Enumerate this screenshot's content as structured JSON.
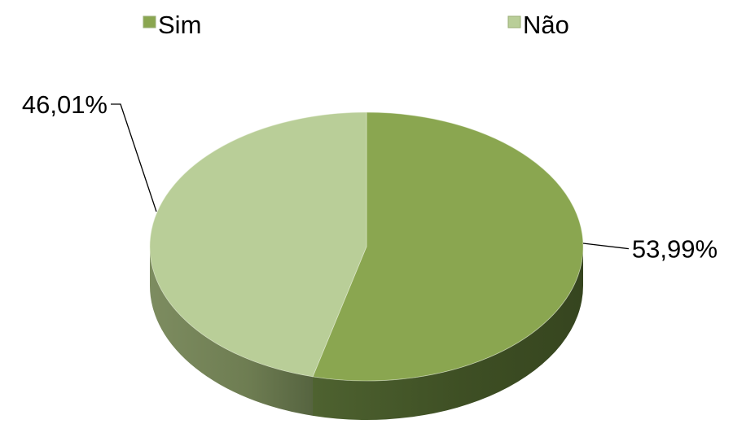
{
  "chart_data": {
    "type": "pie",
    "style": "3d",
    "legend_position": "top",
    "categories": [
      "Sim",
      "Não"
    ],
    "values": [
      53.99,
      46.01
    ],
    "data_labels": [
      "53,99%",
      "46,01%"
    ],
    "colors": {
      "Sim": "#8aa650",
      "Não": "#b9ce98"
    }
  }
}
